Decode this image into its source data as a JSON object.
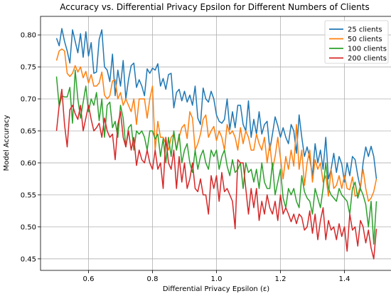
{
  "chart_data": {
    "type": "line",
    "title": "Accuracy vs. Differential Privacy Epsilon for Different Numbers of Clients",
    "xlabel": "Differential Privacy Epsilon (ε)",
    "ylabel": "Model Accuracy",
    "xlim": [
      0.45,
      1.55
    ],
    "ylim": [
      0.432,
      0.829
    ],
    "xticks": [
      0.6,
      0.8,
      1.0,
      1.2,
      1.4
    ],
    "xtick_labels": [
      "0.6",
      "0.8",
      "1.0",
      "1.2",
      "1.4"
    ],
    "yticks": [
      0.45,
      0.5,
      0.55,
      0.6,
      0.65,
      0.7,
      0.75,
      0.8
    ],
    "ytick_labels": [
      "0.45",
      "0.50",
      "0.55",
      "0.60",
      "0.65",
      "0.70",
      "0.75",
      "0.80"
    ],
    "grid": true,
    "legend_position": "top-right",
    "x_start": 0.5,
    "x_end": 1.5,
    "series": [
      {
        "name": "25 clients",
        "color": "#1f77b4",
        "values": [
          0.795,
          0.783,
          0.81,
          0.79,
          0.775,
          0.756,
          0.808,
          0.79,
          0.772,
          0.802,
          0.765,
          0.805,
          0.767,
          0.788,
          0.74,
          0.742,
          0.793,
          0.808,
          0.75,
          0.745,
          0.727,
          0.77,
          0.705,
          0.745,
          0.72,
          0.76,
          0.7,
          0.73,
          0.752,
          0.756,
          0.718,
          0.73,
          0.72,
          0.705,
          0.747,
          0.74,
          0.748,
          0.745,
          0.755,
          0.72,
          0.732,
          0.715,
          0.738,
          0.74,
          0.686,
          0.71,
          0.715,
          0.697,
          0.712,
          0.695,
          0.706,
          0.69,
          0.72,
          0.67,
          0.66,
          0.717,
          0.7,
          0.695,
          0.712,
          0.7,
          0.675,
          0.665,
          0.662,
          0.668,
          0.7,
          0.652,
          0.68,
          0.655,
          0.69,
          0.69,
          0.66,
          0.65,
          0.697,
          0.64,
          0.668,
          0.645,
          0.68,
          0.645,
          0.66,
          0.665,
          0.62,
          0.645,
          0.672,
          0.658,
          0.64,
          0.655,
          0.64,
          0.63,
          0.66,
          0.65,
          0.615,
          0.675,
          0.64,
          0.61,
          0.625,
          0.607,
          0.58,
          0.63,
          0.6,
          0.62,
          0.59,
          0.64,
          0.575,
          0.59,
          0.615,
          0.585,
          0.61,
          0.598,
          0.57,
          0.6,
          0.58,
          0.61,
          0.605,
          0.58,
          0.56,
          0.6,
          0.625,
          0.61,
          0.626,
          0.61,
          0.575
        ]
      },
      {
        "name": "50 clients",
        "color": "#ff7f0e",
        "values": [
          0.76,
          0.775,
          0.778,
          0.775,
          0.74,
          0.735,
          0.74,
          0.752,
          0.742,
          0.75,
          0.733,
          0.743,
          0.725,
          0.738,
          0.72,
          0.72,
          0.725,
          0.742,
          0.706,
          0.7,
          0.705,
          0.728,
          0.73,
          0.7,
          0.71,
          0.69,
          0.7,
          0.69,
          0.68,
          0.7,
          0.66,
          0.7,
          0.7,
          0.7,
          0.67,
          0.7,
          0.72,
          0.62,
          0.665,
          0.64,
          0.64,
          0.63,
          0.62,
          0.64,
          0.645,
          0.62,
          0.64,
          0.655,
          0.66,
          0.638,
          0.68,
          0.67,
          0.62,
          0.63,
          0.645,
          0.668,
          0.675,
          0.64,
          0.65,
          0.657,
          0.635,
          0.65,
          0.64,
          0.62,
          0.66,
          0.645,
          0.65,
          0.64,
          0.62,
          0.655,
          0.63,
          0.65,
          0.64,
          0.62,
          0.62,
          0.645,
          0.63,
          0.62,
          0.64,
          0.6,
          0.63,
          0.59,
          0.61,
          0.64,
          0.607,
          0.575,
          0.61,
          0.59,
          0.62,
          0.595,
          0.66,
          0.59,
          0.62,
          0.565,
          0.6,
          0.62,
          0.57,
          0.605,
          0.59,
          0.6,
          0.57,
          0.58,
          0.548,
          0.59,
          0.56,
          0.565,
          0.58,
          0.56,
          0.58,
          0.56,
          0.558,
          0.578,
          0.548,
          0.55,
          0.565,
          0.59,
          0.56,
          0.54,
          0.545,
          0.555,
          0.575
        ]
      },
      {
        "name": "100 clients",
        "color": "#2ca02c",
        "values": [
          0.735,
          0.688,
          0.705,
          0.703,
          0.703,
          0.718,
          0.662,
          0.745,
          0.7,
          0.67,
          0.695,
          0.72,
          0.68,
          0.7,
          0.69,
          0.71,
          0.666,
          0.7,
          0.64,
          0.69,
          0.695,
          0.655,
          0.665,
          0.64,
          0.69,
          0.67,
          0.625,
          0.655,
          0.66,
          0.62,
          0.65,
          0.645,
          0.65,
          0.64,
          0.62,
          0.65,
          0.65,
          0.637,
          0.645,
          0.61,
          0.638,
          0.6,
          0.64,
          0.61,
          0.65,
          0.62,
          0.645,
          0.6,
          0.62,
          0.63,
          0.6,
          0.585,
          0.62,
          0.59,
          0.61,
          0.62,
          0.6,
          0.59,
          0.62,
          0.61,
          0.62,
          0.59,
          0.61,
          0.62,
          0.595,
          0.58,
          0.605,
          0.585,
          0.59,
          0.6,
          0.56,
          0.6,
          0.585,
          0.59,
          0.57,
          0.59,
          0.56,
          0.6,
          0.57,
          0.56,
          0.56,
          0.6,
          0.55,
          0.57,
          0.59,
          0.545,
          0.53,
          0.56,
          0.55,
          0.56,
          0.54,
          0.53,
          0.58,
          0.555,
          0.545,
          0.54,
          0.52,
          0.56,
          0.545,
          0.53,
          0.56,
          0.6,
          0.56,
          0.55,
          0.545,
          0.54,
          0.56,
          0.55,
          0.545,
          0.54,
          0.52,
          0.56,
          0.57,
          0.545,
          0.56,
          0.55,
          0.535,
          0.5,
          0.54,
          0.473,
          0.54
        ]
      },
      {
        "name": "200 clients",
        "color": "#d62728",
        "values": [
          0.65,
          0.69,
          0.715,
          0.66,
          0.625,
          0.683,
          0.69,
          0.677,
          0.668,
          0.69,
          0.65,
          0.67,
          0.69,
          0.668,
          0.65,
          0.655,
          0.662,
          0.64,
          0.67,
          0.65,
          0.64,
          0.645,
          0.605,
          0.66,
          0.68,
          0.64,
          0.625,
          0.65,
          0.62,
          0.64,
          0.596,
          0.62,
          0.605,
          0.6,
          0.62,
          0.6,
          0.59,
          0.62,
          0.59,
          0.6,
          0.56,
          0.64,
          0.6,
          0.59,
          0.62,
          0.56,
          0.61,
          0.57,
          0.6,
          0.56,
          0.575,
          0.6,
          0.56,
          0.555,
          0.575,
          0.55,
          0.55,
          0.52,
          0.58,
          0.56,
          0.58,
          0.54,
          0.585,
          0.555,
          0.56,
          0.55,
          0.54,
          0.497,
          0.605,
          0.6,
          0.6,
          0.56,
          0.52,
          0.56,
          0.53,
          0.56,
          0.51,
          0.54,
          0.52,
          0.55,
          0.53,
          0.52,
          0.54,
          0.51,
          0.55,
          0.52,
          0.53,
          0.52,
          0.508,
          0.52,
          0.505,
          0.52,
          0.515,
          0.495,
          0.5,
          0.525,
          0.49,
          0.52,
          0.48,
          0.51,
          0.53,
          0.48,
          0.51,
          0.495,
          0.5,
          0.48,
          0.505,
          0.485,
          0.5,
          0.462,
          0.52,
          0.495,
          0.5,
          0.47,
          0.51,
          0.5,
          0.475,
          0.495,
          0.467,
          0.45,
          0.497
        ]
      }
    ]
  }
}
